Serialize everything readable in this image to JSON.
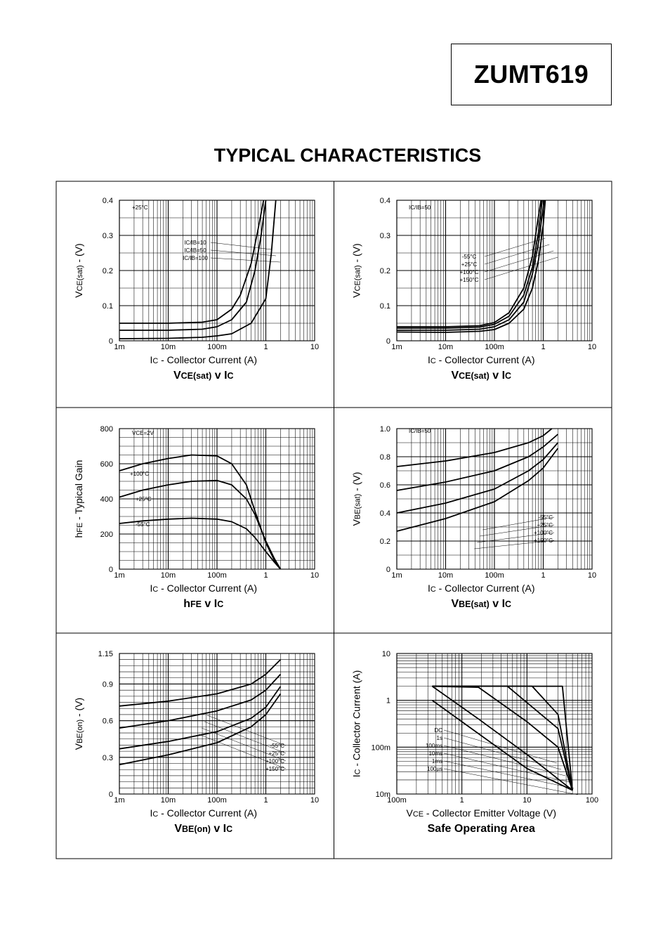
{
  "header": {
    "part_number": "ZUMT619"
  },
  "page_title": "TYPICAL CHARACTERISTICS",
  "chart_data": [
    {
      "type": "line",
      "title_main": "V",
      "title_sub": "CE(sat)",
      "title_tail": " v I",
      "title_tail_sub": "C",
      "ylabel_main": "V",
      "ylabel_sub": "CE(sat)",
      "ylabel_tail": " - (V)",
      "xlabel_main": "I",
      "xlabel_sub": "C",
      "xlabel_tail": " - Collector Current (A)",
      "x_scale": "log",
      "xlim": [
        0.001,
        10
      ],
      "xticks": [
        "1m",
        "10m",
        "100m",
        "1",
        "10"
      ],
      "y_scale": "linear",
      "ylim": [
        0,
        0.4
      ],
      "yticks": [
        "0",
        "0.1",
        "0.2",
        "0.3",
        "0.4"
      ],
      "y_step": 0.1,
      "y_grid_steps": 8,
      "condition": "+25°C",
      "legend_labels": [
        "IC/IB=10",
        "IC/IB=50",
        "IC/IB=100"
      ],
      "series": [
        {
          "name": "IC/IB=10",
          "x": [
            0.001,
            0.01,
            0.05,
            0.1,
            0.2,
            0.5,
            1,
            1.3,
            1.6
          ],
          "y": [
            0.006,
            0.007,
            0.01,
            0.014,
            0.02,
            0.05,
            0.12,
            0.25,
            0.4
          ]
        },
        {
          "name": "IC/IB=50",
          "x": [
            0.001,
            0.01,
            0.05,
            0.1,
            0.2,
            0.4,
            0.6,
            0.8,
            1.0
          ],
          "y": [
            0.03,
            0.03,
            0.033,
            0.04,
            0.06,
            0.11,
            0.2,
            0.3,
            0.4
          ]
        },
        {
          "name": "IC/IB=100",
          "x": [
            0.001,
            0.01,
            0.05,
            0.1,
            0.2,
            0.3,
            0.5,
            0.7,
            0.9
          ],
          "y": [
            0.05,
            0.05,
            0.053,
            0.06,
            0.09,
            0.13,
            0.22,
            0.32,
            0.4
          ]
        }
      ]
    },
    {
      "type": "line",
      "title_main": "V",
      "title_sub": "CE(sat)",
      "title_tail": " v I",
      "title_tail_sub": "C",
      "ylabel_main": "V",
      "ylabel_sub": "CE(sat)",
      "ylabel_tail": " - (V)",
      "xlabel_main": "I",
      "xlabel_sub": "C",
      "xlabel_tail": " - Collector Current (A)",
      "x_scale": "log",
      "xlim": [
        0.001,
        10
      ],
      "xticks": [
        "1m",
        "10m",
        "100m",
        "1",
        "10"
      ],
      "y_scale": "linear",
      "ylim": [
        0,
        0.4
      ],
      "yticks": [
        "0",
        "0.1",
        "0.2",
        "0.3",
        "0.4"
      ],
      "y_step": 0.1,
      "y_grid_steps": 8,
      "condition": "IC/IB=50",
      "legend_labels": [
        "-55°C",
        "+25°C",
        "+100°C",
        "+150°C"
      ],
      "series": [
        {
          "name": "-55°C",
          "x": [
            0.001,
            0.01,
            0.05,
            0.1,
            0.2,
            0.4,
            0.6,
            0.8,
            1.0,
            1.1
          ],
          "y": [
            0.025,
            0.024,
            0.027,
            0.032,
            0.05,
            0.09,
            0.15,
            0.23,
            0.33,
            0.4
          ]
        },
        {
          "name": "+25°C",
          "x": [
            0.001,
            0.01,
            0.05,
            0.1,
            0.2,
            0.4,
            0.6,
            0.8,
            1.0,
            1.05
          ],
          "y": [
            0.03,
            0.03,
            0.033,
            0.04,
            0.06,
            0.11,
            0.19,
            0.28,
            0.38,
            0.4
          ]
        },
        {
          "name": "+100°C",
          "x": [
            0.001,
            0.01,
            0.05,
            0.1,
            0.2,
            0.4,
            0.6,
            0.8,
            0.95
          ],
          "y": [
            0.036,
            0.036,
            0.039,
            0.047,
            0.07,
            0.13,
            0.21,
            0.31,
            0.4
          ]
        },
        {
          "name": "+150°C",
          "x": [
            0.001,
            0.01,
            0.05,
            0.1,
            0.2,
            0.4,
            0.6,
            0.75,
            0.9
          ],
          "y": [
            0.04,
            0.04,
            0.043,
            0.052,
            0.08,
            0.15,
            0.24,
            0.33,
            0.4
          ]
        }
      ]
    },
    {
      "type": "line",
      "title_main": "h",
      "title_sub": "FE",
      "title_tail": " v I",
      "title_tail_sub": "C",
      "ylabel_main": "h",
      "ylabel_sub": "FE",
      "ylabel_tail": " - Typical Gain",
      "xlabel_main": "I",
      "xlabel_sub": "C",
      "xlabel_tail": " - Collector Current (A)",
      "x_scale": "log",
      "xlim": [
        0.001,
        10
      ],
      "xticks": [
        "1m",
        "10m",
        "100m",
        "1",
        "10"
      ],
      "y_scale": "linear",
      "ylim": [
        0,
        800
      ],
      "yticks": [
        "0",
        "200",
        "400",
        "600",
        "800"
      ],
      "y_step": 200,
      "y_grid_steps": 16,
      "condition": "VCE=2V",
      "legend_labels": [
        "+100°C",
        "+25°C",
        "-55°C"
      ],
      "series": [
        {
          "name": "+100°C",
          "x": [
            0.001,
            0.003,
            0.01,
            0.03,
            0.1,
            0.2,
            0.4,
            0.6,
            1.0,
            1.5,
            2.0
          ],
          "y": [
            560,
            600,
            630,
            650,
            645,
            600,
            480,
            330,
            150,
            50,
            0
          ]
        },
        {
          "name": "+25°C",
          "x": [
            0.001,
            0.003,
            0.01,
            0.03,
            0.1,
            0.2,
            0.4,
            0.6,
            1.0,
            1.5,
            2.0
          ],
          "y": [
            410,
            450,
            480,
            500,
            505,
            480,
            400,
            310,
            160,
            60,
            0
          ]
        },
        {
          "name": "-55°C",
          "x": [
            0.001,
            0.003,
            0.01,
            0.03,
            0.1,
            0.2,
            0.4,
            0.6,
            1.0,
            1.5,
            2.0
          ],
          "y": [
            260,
            275,
            285,
            290,
            285,
            270,
            230,
            180,
            100,
            40,
            0
          ]
        }
      ]
    },
    {
      "type": "line",
      "title_main": "V",
      "title_sub": "BE(sat)",
      "title_tail": " v I",
      "title_tail_sub": "C",
      "ylabel_main": "V",
      "ylabel_sub": "BE(sat)",
      "ylabel_tail": " - (V)",
      "xlabel_main": "I",
      "xlabel_sub": "C",
      "xlabel_tail": " - Collector Current (A)",
      "x_scale": "log",
      "xlim": [
        0.001,
        10
      ],
      "xticks": [
        "1m",
        "10m",
        "100m",
        "1",
        "10"
      ],
      "y_scale": "linear",
      "ylim": [
        0,
        1.0
      ],
      "yticks": [
        "0",
        "0.2",
        "0.4",
        "0.6",
        "0.8",
        "1.0"
      ],
      "y_step": 0.2,
      "y_grid_steps": 10,
      "condition": "IC/IB=50",
      "legend_labels": [
        "-55°C",
        "+25°C",
        "+100°C",
        "+150°C"
      ],
      "series": [
        {
          "name": "-55°C",
          "x": [
            0.001,
            0.01,
            0.1,
            0.5,
            1,
            1.5
          ],
          "y": [
            0.73,
            0.77,
            0.83,
            0.9,
            0.95,
            1.0
          ]
        },
        {
          "name": "+25°C",
          "x": [
            0.001,
            0.01,
            0.1,
            0.5,
            1,
            2
          ],
          "y": [
            0.56,
            0.62,
            0.7,
            0.8,
            0.87,
            0.96
          ]
        },
        {
          "name": "+100°C",
          "x": [
            0.001,
            0.01,
            0.1,
            0.5,
            1,
            2
          ],
          "y": [
            0.4,
            0.47,
            0.57,
            0.7,
            0.78,
            0.9
          ]
        },
        {
          "name": "+150°C",
          "x": [
            0.001,
            0.01,
            0.1,
            0.5,
            1,
            2
          ],
          "y": [
            0.27,
            0.36,
            0.48,
            0.63,
            0.72,
            0.86
          ]
        }
      ]
    },
    {
      "type": "line",
      "title_main": "V",
      "title_sub": "BE(on)",
      "title_tail": " v I",
      "title_tail_sub": "C",
      "ylabel_main": "V",
      "ylabel_sub": "BE(on)",
      "ylabel_tail": " - (V)",
      "xlabel_main": "I",
      "xlabel_sub": "C",
      "xlabel_tail": " - Collector Current (A)",
      "x_scale": "log",
      "xlim": [
        0.001,
        10
      ],
      "xticks": [
        "1m",
        "10m",
        "100m",
        "1",
        "10"
      ],
      "y_scale": "linear",
      "ylim": [
        0,
        1.15
      ],
      "yticks": [
        "0",
        "0.3",
        "0.6",
        "0.9",
        "1.15"
      ],
      "y_step": 0.3,
      "y_grid_steps": 23,
      "condition": "",
      "legend_labels": [
        "-55°C",
        "+25°C",
        "+100°C",
        "+150°C"
      ],
      "series": [
        {
          "name": "-55°C",
          "x": [
            0.001,
            0.01,
            0.1,
            0.5,
            1,
            2
          ],
          "y": [
            0.72,
            0.76,
            0.82,
            0.9,
            0.98,
            1.1
          ]
        },
        {
          "name": "+25°C",
          "x": [
            0.001,
            0.01,
            0.1,
            0.5,
            1,
            2
          ],
          "y": [
            0.54,
            0.6,
            0.68,
            0.77,
            0.85,
            0.98
          ]
        },
        {
          "name": "+100°C",
          "x": [
            0.001,
            0.01,
            0.1,
            0.5,
            1,
            2
          ],
          "y": [
            0.37,
            0.43,
            0.51,
            0.62,
            0.71,
            0.88
          ]
        },
        {
          "name": "+150°C",
          "x": [
            0.001,
            0.01,
            0.1,
            0.5,
            1,
            2
          ],
          "y": [
            0.24,
            0.32,
            0.42,
            0.55,
            0.65,
            0.82
          ]
        }
      ]
    },
    {
      "type": "line",
      "title_main": "Safe Operating Area",
      "title_sub": "",
      "title_tail": "",
      "title_tail_sub": "",
      "ylabel_main": "I",
      "ylabel_sub": "C",
      "ylabel_tail": " - Collector Current (A)",
      "xlabel_main": "V",
      "xlabel_sub": "CE",
      "xlabel_tail": " - Collector Emitter Voltage (V)",
      "x_scale": "log",
      "xlim": [
        0.1,
        100
      ],
      "xticks": [
        "100m",
        "1",
        "10",
        "100"
      ],
      "y_scale": "log",
      "ylim": [
        0.01,
        10
      ],
      "yticks": [
        "10m",
        "100m",
        "1",
        "10"
      ],
      "condition": "",
      "legend_labels": [
        "DC",
        "1s",
        "100ms",
        "10ms",
        "1ms",
        "100µs"
      ],
      "series": [
        {
          "name": "DC",
          "x": [
            0.35,
            1.0,
            10,
            50
          ],
          "y": [
            1.0,
            0.35,
            0.035,
            0.012
          ]
        },
        {
          "name": "1s",
          "x": [
            0.35,
            1.8,
            10,
            50
          ],
          "y": [
            2.0,
            0.4,
            0.07,
            0.012
          ]
        },
        {
          "name": "100ms",
          "x": [
            0.35,
            1.8,
            10,
            30,
            50
          ],
          "y": [
            2.0,
            1.9,
            0.35,
            0.1,
            0.012
          ]
        },
        {
          "name": "10ms",
          "x": [
            0.35,
            5.0,
            30,
            50
          ],
          "y": [
            2.0,
            2.0,
            0.25,
            0.012
          ]
        },
        {
          "name": "1ms",
          "x": [
            0.35,
            12,
            30,
            50
          ],
          "y": [
            2.0,
            2.0,
            0.5,
            0.012
          ]
        },
        {
          "name": "100µs",
          "x": [
            0.35,
            35,
            50
          ],
          "y": [
            2.0,
            2.0,
            0.012
          ]
        }
      ]
    }
  ]
}
